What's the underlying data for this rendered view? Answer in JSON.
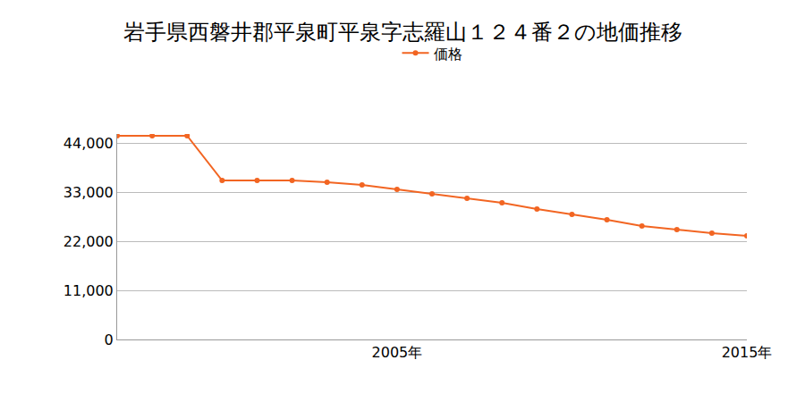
{
  "chart_data": {
    "type": "line",
    "title": "岩手県西磐井郡平泉町平泉字志羅山１２４番２の地価推移",
    "x": [
      1997,
      1998,
      1999,
      2000,
      2001,
      2002,
      2003,
      2004,
      2005,
      2006,
      2007,
      2008,
      2009,
      2010,
      2011,
      2012,
      2013,
      2014,
      2015
    ],
    "series": [
      {
        "name": "価格",
        "color": "#f26522",
        "values": [
          45600,
          45600,
          45600,
          35600,
          35600,
          35600,
          35200,
          34600,
          33600,
          32600,
          31600,
          30600,
          29200,
          28000,
          26800,
          25400,
          24600,
          23800,
          23200
        ]
      }
    ],
    "xlim": [
      1997,
      2015
    ],
    "xticks": [
      {
        "value": 2005,
        "label": "2005年"
      },
      {
        "value": 2015,
        "label": "2015年"
      }
    ],
    "ylim": [
      0,
      46000
    ],
    "yticks": [
      0,
      {
        "value": 11000,
        "label": "11,000"
      },
      {
        "value": 22000,
        "label": "22,000"
      },
      {
        "value": 33000,
        "label": "33,000"
      },
      {
        "value": 44000,
        "label": "44,000"
      }
    ],
    "grid": true,
    "legend": "top",
    "marker": "circle",
    "line_style": "solid"
  }
}
